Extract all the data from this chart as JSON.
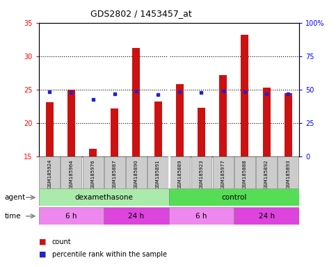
{
  "title": "GDS2802 / 1453457_at",
  "samples": [
    "GSM185924",
    "GSM185964",
    "GSM185976",
    "GSM185887",
    "GSM185890",
    "GSM185891",
    "GSM185889",
    "GSM185923",
    "GSM185977",
    "GSM185888",
    "GSM185892",
    "GSM185893"
  ],
  "count_values": [
    23.1,
    25.0,
    16.1,
    22.2,
    31.2,
    23.2,
    25.8,
    22.3,
    27.1,
    33.2,
    25.3,
    24.4
  ],
  "percentile_values": [
    48.5,
    47.5,
    42.5,
    46.5,
    49.0,
    46.0,
    48.0,
    47.5,
    49.0,
    48.0,
    46.5,
    46.5
  ],
  "y_min": 15,
  "y_max": 35,
  "y_ticks_left": [
    15,
    20,
    25,
    30,
    35
  ],
  "y_ticks_right": [
    0,
    25,
    50,
    75,
    100
  ],
  "bar_color": "#cc1111",
  "dot_color": "#2222cc",
  "bar_bottom": 15,
  "agent_groups": [
    {
      "label": "dexamethasone",
      "start": 0,
      "end": 6,
      "color": "#aaeaaa"
    },
    {
      "label": "control",
      "start": 6,
      "end": 12,
      "color": "#55dd55"
    }
  ],
  "time_groups": [
    {
      "label": "6 h",
      "start": 0,
      "end": 3,
      "color": "#ee88ee"
    },
    {
      "label": "24 h",
      "start": 3,
      "end": 6,
      "color": "#dd44dd"
    },
    {
      "label": "6 h",
      "start": 6,
      "end": 9,
      "color": "#ee88ee"
    },
    {
      "label": "24 h",
      "start": 9,
      "end": 12,
      "color": "#dd44dd"
    }
  ],
  "legend_count_color": "#cc1111",
  "legend_dot_color": "#2222cc",
  "bg_color": "#ffffff",
  "grid_color": "#000000",
  "tick_label_bg": "#cccccc",
  "agent_label": "agent",
  "time_label": "time",
  "count_label": "count",
  "percentile_label": "percentile rank within the sample",
  "bar_width": 0.35
}
